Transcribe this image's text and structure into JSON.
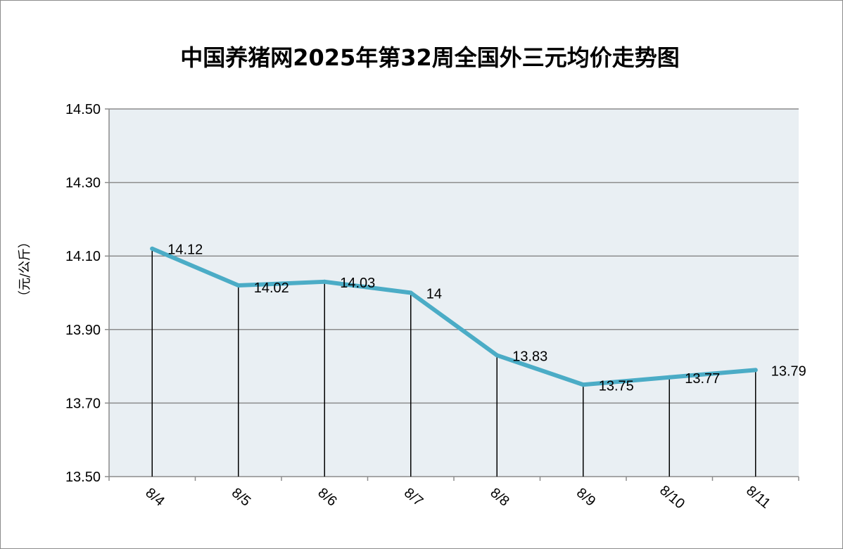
{
  "chart_data": {
    "type": "line",
    "title": "中国养猪网2025年第32周全国外三元均价走势图",
    "ylabel": "（元/公斤）",
    "xlabel": "",
    "categories": [
      "8/4",
      "8/5",
      "8/6",
      "8/7",
      "8/8",
      "8/9",
      "8/10",
      "8/11"
    ],
    "values": [
      14.12,
      14.02,
      14.03,
      14,
      13.83,
      13.75,
      13.77,
      13.79
    ],
    "data_labels": [
      "14.12",
      "14.02",
      "14.03",
      "14",
      "13.83",
      "13.75",
      "13.77",
      "13.79"
    ],
    "ylim": [
      13.5,
      14.5
    ],
    "yticks": [
      "13.50",
      "13.70",
      "13.90",
      "14.10",
      "14.30",
      "14.50"
    ],
    "grid": true,
    "drop_lines": true,
    "colors": {
      "line": "#4bacc6",
      "plot_background": "#e9eff3",
      "grid": "#8c8c8c",
      "drop_line": "#000000"
    }
  }
}
